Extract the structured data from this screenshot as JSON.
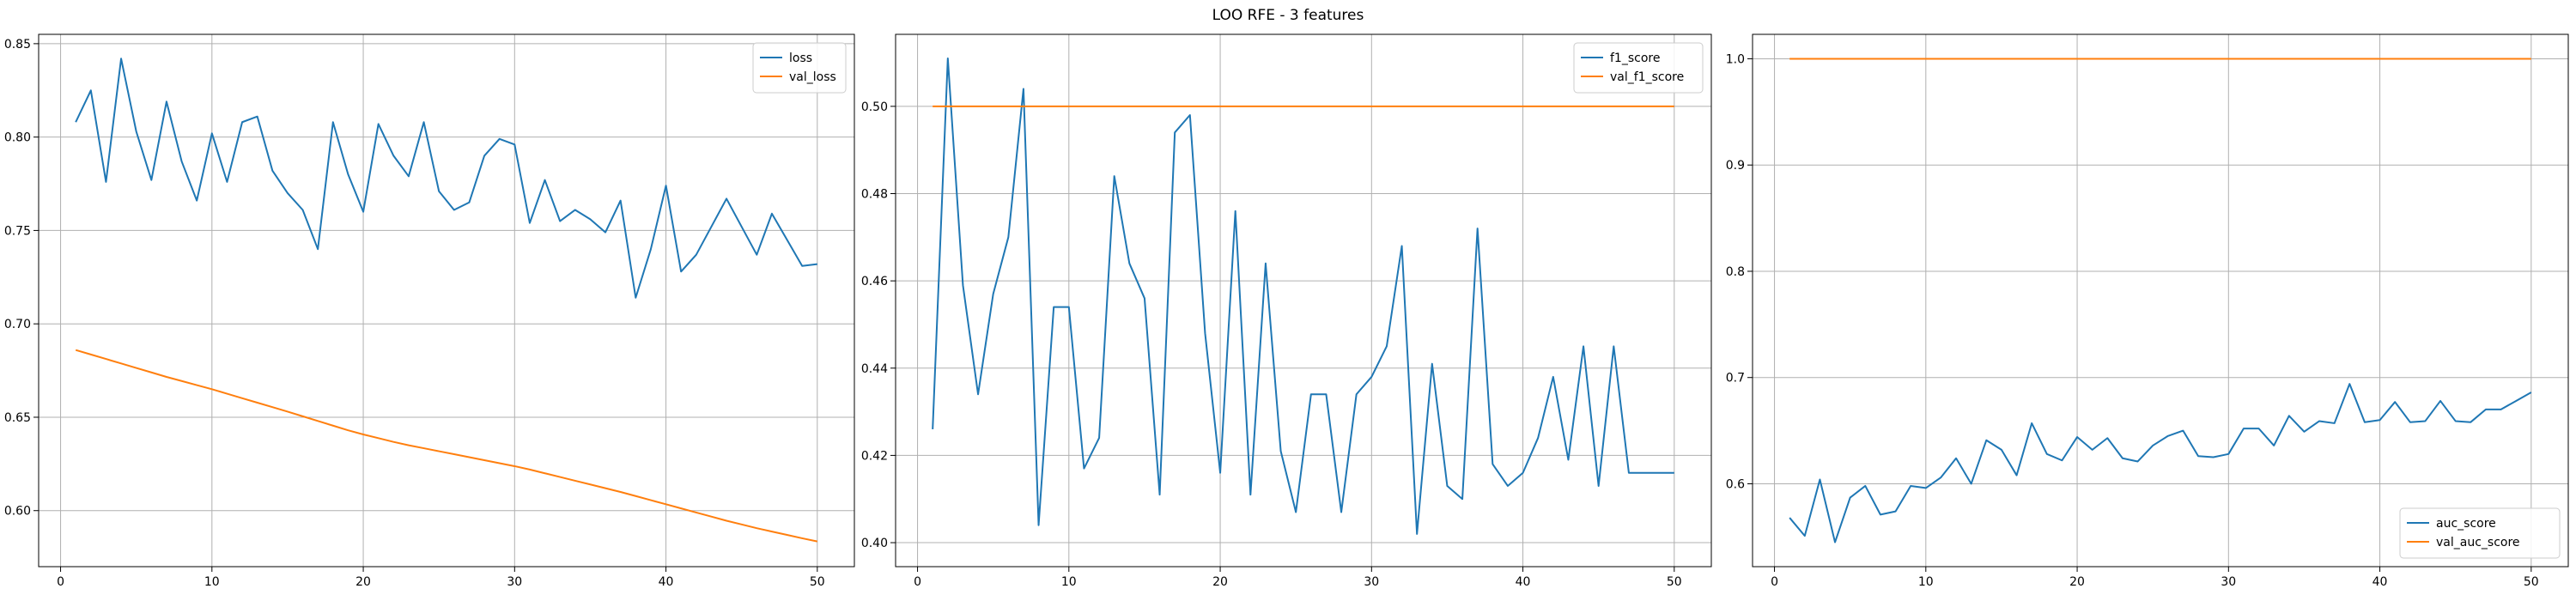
{
  "figure": {
    "title": "LOO RFE - 3 features"
  },
  "colors": {
    "train": "#1f77b4",
    "val": "#ff7f0e",
    "grid": "#b0b0b0",
    "axis": "#000000"
  },
  "chart_data": [
    {
      "type": "line",
      "title": "",
      "xlabel": "",
      "ylabel": "",
      "xlim": [
        -1.45,
        52.45
      ],
      "ylim": [
        0.57,
        0.855
      ],
      "xticks": [
        0,
        10,
        20,
        30,
        40,
        50
      ],
      "yticks": [
        0.6,
        0.65,
        0.7,
        0.75,
        0.8,
        0.85
      ],
      "ytick_labels": [
        "0.60",
        "0.65",
        "0.70",
        "0.75",
        "0.80",
        "0.85"
      ],
      "grid": true,
      "legend_position": "upper right",
      "x": [
        1,
        2,
        3,
        4,
        5,
        6,
        7,
        8,
        9,
        10,
        11,
        12,
        13,
        14,
        15,
        16,
        17,
        18,
        19,
        20,
        21,
        22,
        23,
        24,
        25,
        26,
        27,
        28,
        29,
        30,
        31,
        32,
        33,
        34,
        35,
        36,
        37,
        38,
        39,
        40,
        41,
        42,
        43,
        44,
        45,
        46,
        47,
        48,
        49,
        50
      ],
      "series": [
        {
          "name": "loss",
          "values": [
            0.808,
            0.825,
            0.776,
            0.842,
            0.803,
            0.777,
            0.819,
            0.787,
            0.766,
            0.802,
            0.776,
            0.808,
            0.811,
            0.782,
            0.77,
            0.761,
            0.74,
            0.808,
            0.78,
            0.76,
            0.807,
            0.79,
            0.779,
            0.808,
            0.771,
            0.761,
            0.765,
            0.79,
            0.799,
            0.796,
            0.754,
            0.777,
            0.755,
            0.761,
            0.756,
            0.749,
            0.766,
            0.714,
            0.74,
            0.774,
            0.728,
            0.737,
            0.752,
            0.767,
            0.752,
            0.737,
            0.759,
            0.745,
            0.731,
            0.732
          ]
        },
        {
          "name": "val_loss",
          "values": [
            0.686,
            0.6836,
            0.6812,
            0.6788,
            0.6764,
            0.674,
            0.6716,
            0.6694,
            0.6672,
            0.665,
            0.6626,
            0.6602,
            0.6578,
            0.6554,
            0.653,
            0.6505,
            0.648,
            0.6455,
            0.643,
            0.6408,
            0.6388,
            0.6368,
            0.635,
            0.6334,
            0.6318,
            0.6302,
            0.6286,
            0.627,
            0.6254,
            0.6238,
            0.622,
            0.62,
            0.618,
            0.616,
            0.614,
            0.612,
            0.61,
            0.6078,
            0.6056,
            0.6034,
            0.6012,
            0.599,
            0.5968,
            0.5946,
            0.5926,
            0.5906,
            0.5888,
            0.587,
            0.5852,
            0.5835
          ]
        }
      ]
    },
    {
      "type": "line",
      "title": "",
      "xlabel": "",
      "ylabel": "",
      "xlim": [
        -1.45,
        52.45
      ],
      "ylim": [
        0.3945,
        0.5165
      ],
      "xticks": [
        0,
        10,
        20,
        30,
        40,
        50
      ],
      "yticks": [
        0.4,
        0.42,
        0.44,
        0.46,
        0.48,
        0.5
      ],
      "ytick_labels": [
        "0.40",
        "0.42",
        "0.44",
        "0.46",
        "0.48",
        "0.50"
      ],
      "grid": true,
      "legend_position": "upper right",
      "x": [
        1,
        2,
        3,
        4,
        5,
        6,
        7,
        8,
        9,
        10,
        11,
        12,
        13,
        14,
        15,
        16,
        17,
        18,
        19,
        20,
        21,
        22,
        23,
        24,
        25,
        26,
        27,
        28,
        29,
        30,
        31,
        32,
        33,
        34,
        35,
        36,
        37,
        38,
        39,
        40,
        41,
        42,
        43,
        44,
        45,
        46,
        47,
        48,
        49,
        50
      ],
      "series": [
        {
          "name": "f1_score",
          "values": [
            0.426,
            0.511,
            0.459,
            0.434,
            0.457,
            0.47,
            0.504,
            0.404,
            0.454,
            0.454,
            0.417,
            0.424,
            0.484,
            0.464,
            0.456,
            0.411,
            0.494,
            0.498,
            0.448,
            0.416,
            0.476,
            0.411,
            0.464,
            0.421,
            0.407,
            0.434,
            0.434,
            0.407,
            0.434,
            0.438,
            0.445,
            0.468,
            0.402,
            0.441,
            0.413,
            0.41,
            0.472,
            0.418,
            0.413,
            0.416,
            0.424,
            0.438,
            0.419,
            0.445,
            0.413,
            0.445,
            0.416,
            0.416,
            0.416,
            0.416
          ]
        },
        {
          "name": "val_f1_score",
          "values": [
            0.5,
            0.5,
            0.5,
            0.5,
            0.5,
            0.5,
            0.5,
            0.5,
            0.5,
            0.5,
            0.5,
            0.5,
            0.5,
            0.5,
            0.5,
            0.5,
            0.5,
            0.5,
            0.5,
            0.5,
            0.5,
            0.5,
            0.5,
            0.5,
            0.5,
            0.5,
            0.5,
            0.5,
            0.5,
            0.5,
            0.5,
            0.5,
            0.5,
            0.5,
            0.5,
            0.5,
            0.5,
            0.5,
            0.5,
            0.5,
            0.5,
            0.5,
            0.5,
            0.5,
            0.5,
            0.5,
            0.5,
            0.5,
            0.5,
            0.5
          ]
        }
      ]
    },
    {
      "type": "line",
      "title": "",
      "xlabel": "",
      "ylabel": "",
      "xlim": [
        -1.45,
        52.45
      ],
      "ylim": [
        0.522,
        1.023
      ],
      "xticks": [
        0,
        10,
        20,
        30,
        40,
        50
      ],
      "yticks": [
        0.6,
        0.7,
        0.8,
        0.9,
        1.0
      ],
      "ytick_labels": [
        "0.6",
        "0.7",
        "0.8",
        "0.9",
        "1.0"
      ],
      "grid": true,
      "legend_position": "lower right",
      "x": [
        1,
        2,
        3,
        4,
        5,
        6,
        7,
        8,
        9,
        10,
        11,
        12,
        13,
        14,
        15,
        16,
        17,
        18,
        19,
        20,
        21,
        22,
        23,
        24,
        25,
        26,
        27,
        28,
        29,
        30,
        31,
        32,
        33,
        34,
        35,
        36,
        37,
        38,
        39,
        40,
        41,
        42,
        43,
        44,
        45,
        46,
        47,
        48,
        49,
        50
      ],
      "series": [
        {
          "name": "auc_score",
          "values": [
            0.568,
            0.551,
            0.604,
            0.545,
            0.587,
            0.598,
            0.571,
            0.574,
            0.598,
            0.596,
            0.606,
            0.624,
            0.6,
            0.641,
            0.632,
            0.608,
            0.657,
            0.628,
            0.622,
            0.644,
            0.632,
            0.643,
            0.624,
            0.621,
            0.636,
            0.645,
            0.65,
            0.626,
            0.625,
            0.628,
            0.652,
            0.652,
            0.636,
            0.664,
            0.649,
            0.659,
            0.657,
            0.694,
            0.658,
            0.66,
            0.677,
            0.658,
            0.659,
            0.678,
            0.659,
            0.658,
            0.67,
            0.67,
            0.678,
            0.686
          ]
        },
        {
          "name": "val_auc_score",
          "values": [
            1,
            1,
            1,
            1,
            1,
            1,
            1,
            1,
            1,
            1,
            1,
            1,
            1,
            1,
            1,
            1,
            1,
            1,
            1,
            1,
            1,
            1,
            1,
            1,
            1,
            1,
            1,
            1,
            1,
            1,
            1,
            1,
            1,
            1,
            1,
            1,
            1,
            1,
            1,
            1,
            1,
            1,
            1,
            1,
            1,
            1,
            1,
            1,
            1,
            1
          ]
        }
      ]
    }
  ]
}
